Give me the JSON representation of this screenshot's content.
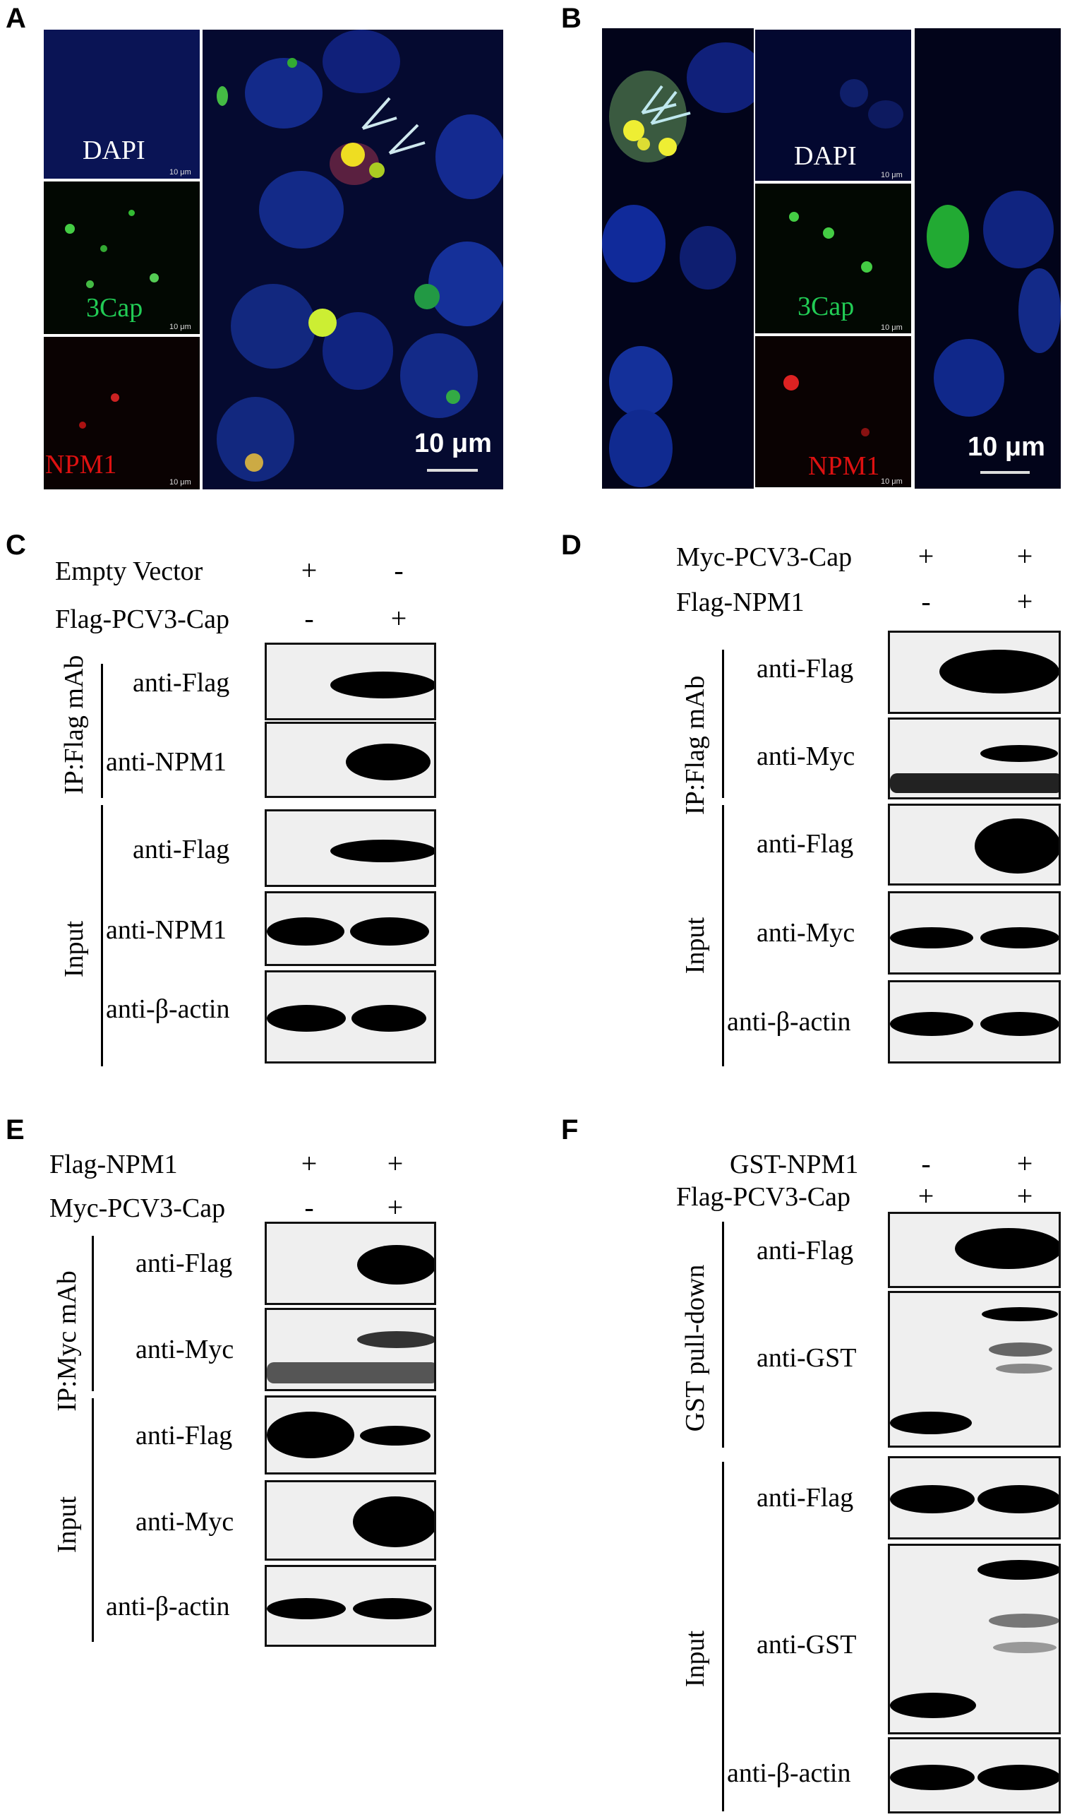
{
  "panels": {
    "A": {
      "label": "A",
      "insets": [
        "DAPI",
        "3Cap",
        "NPM1"
      ],
      "inset_scale": "10 μm",
      "scale": "10 μm"
    },
    "B": {
      "label": "B",
      "insets": [
        "DAPI",
        "3Cap",
        "NPM1"
      ],
      "inset_scale": "10 μm",
      "scale": "10 μm"
    },
    "C": {
      "label": "C",
      "conditions": [
        {
          "name": "Empty Vector",
          "signs": [
            "+",
            "-"
          ]
        },
        {
          "name": "Flag-PCV3-Cap",
          "signs": [
            "-",
            "+"
          ]
        }
      ],
      "groups": [
        "IP:Flag mAb",
        "Input"
      ],
      "blots": [
        "anti-Flag",
        "anti-NPM1",
        "anti-Flag",
        "anti-NPM1",
        "anti-β-actin"
      ]
    },
    "D": {
      "label": "D",
      "conditions": [
        {
          "name": "Myc-PCV3-Cap",
          "signs": [
            "+",
            "+"
          ]
        },
        {
          "name": "Flag-NPM1",
          "signs": [
            "-",
            "+"
          ]
        }
      ],
      "groups": [
        "IP:Flag mAb",
        "Input"
      ],
      "blots": [
        "anti-Flag",
        "anti-Myc",
        "anti-Flag",
        "anti-Myc",
        "anti-β-actin"
      ]
    },
    "E": {
      "label": "E",
      "conditions": [
        {
          "name": "Flag-NPM1",
          "signs": [
            "+",
            "+"
          ]
        },
        {
          "name": "Myc-PCV3-Cap",
          "signs": [
            "-",
            "+"
          ]
        }
      ],
      "groups": [
        "IP:Myc mAb",
        "Input"
      ],
      "blots": [
        "anti-Flag",
        "anti-Myc",
        "anti-Flag",
        "anti-Myc",
        "anti-β-actin"
      ]
    },
    "F": {
      "label": "F",
      "conditions": [
        {
          "name": "GST-NPM1",
          "signs": [
            "-",
            "+"
          ]
        },
        {
          "name": "Flag-PCV3-Cap",
          "signs": [
            "+",
            "+"
          ]
        }
      ],
      "groups": [
        "GST pull-down",
        "Input"
      ],
      "blots": [
        "anti-Flag",
        "anti-GST",
        "anti-Flag",
        "anti-GST",
        "anti-β-actin"
      ]
    }
  }
}
